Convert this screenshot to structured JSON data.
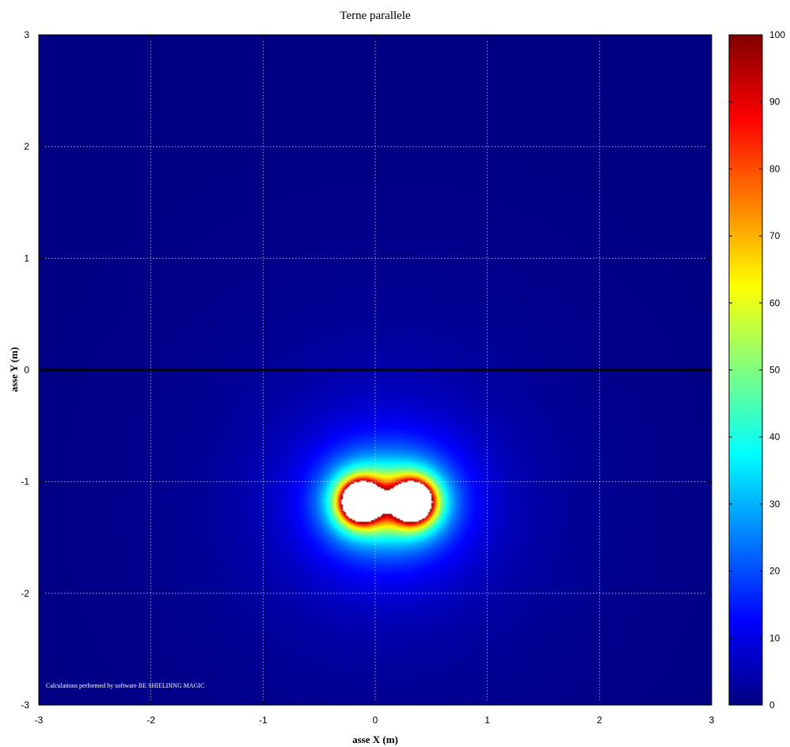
{
  "chart_data": {
    "type": "heatmap",
    "title": "Terne parallele",
    "xlabel": "asse X (m)",
    "ylabel": "asse Y (m)",
    "xlim": [
      -3,
      3
    ],
    "ylim": [
      -3,
      3
    ],
    "xticks": [
      "-3",
      "-2",
      "-1",
      "0",
      "1",
      "2",
      "3"
    ],
    "yticks": [
      "3",
      "2",
      "1",
      "0",
      "-1",
      "-2",
      "-3"
    ],
    "grid": true,
    "colorbar": {
      "range": [
        0,
        100
      ],
      "ticks": [
        "100",
        "90",
        "80",
        "70",
        "60",
        "50",
        "40",
        "30",
        "20",
        "10",
        "0"
      ],
      "colormap": "jet",
      "above_max_color": "#ffffff"
    },
    "reference_line": {
      "axis": "y",
      "value": 0
    },
    "sources": [
      {
        "x": -0.12,
        "y": -1.18
      },
      {
        "x": 0.33,
        "y": -1.18
      }
    ],
    "annotation": "Calculations performed by software BE SHIELDING MAGIC"
  }
}
